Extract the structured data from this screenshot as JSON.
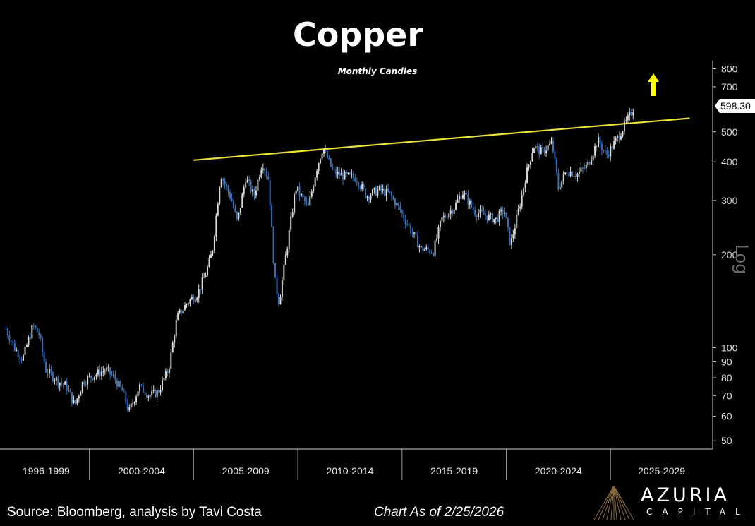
{
  "title": "Copper",
  "subtitle": "Monthly Candles",
  "footer": {
    "source": "Source: Bloomberg, analysis by Tavi Costa",
    "as_of": "Chart As of 2/25/2026"
  },
  "logo": {
    "name": "AZURIA",
    "sub": "CAPITAL"
  },
  "colors": {
    "background": "#000000",
    "trendline": "#e8e23a",
    "arrow": "#ffff00",
    "candle_up": "#d8d8d8",
    "candle_down": "#3a6fb8"
  },
  "chart_data": {
    "type": "candlestick",
    "scale": "log",
    "ylim": [
      47,
      850
    ],
    "yticks": [
      50,
      60,
      70,
      80,
      90,
      100,
      200,
      300,
      400,
      500,
      700,
      800
    ],
    "ytick_labels": [
      "50",
      "60",
      "70",
      "80",
      "90",
      "100",
      "200",
      "300",
      "400",
      "500",
      "700",
      "800"
    ],
    "axis_label": "Log",
    "last_price": "598.30",
    "x_periods": [
      "1996-1999",
      "2000-2004",
      "2005-2009",
      "2010-2014",
      "2015-2019",
      "2020-2024",
      "2025-2029"
    ],
    "xlim": [
      1995.85,
      2029.9
    ],
    "series": [
      {
        "kind": "close_path",
        "points": [
          [
            1996.0,
            115
          ],
          [
            1996.4,
            100
          ],
          [
            1996.8,
            92
          ],
          [
            1997.3,
            118
          ],
          [
            1997.6,
            110
          ],
          [
            1997.9,
            85
          ],
          [
            1998.5,
            78
          ],
          [
            1998.9,
            75
          ],
          [
            1999.3,
            65
          ],
          [
            1999.7,
            78
          ],
          [
            2000.3,
            82
          ],
          [
            2000.8,
            85
          ],
          [
            2001.2,
            80
          ],
          [
            2001.6,
            72
          ],
          [
            2001.9,
            62
          ],
          [
            2002.4,
            75
          ],
          [
            2002.9,
            70
          ],
          [
            2003.3,
            72
          ],
          [
            2003.8,
            85
          ],
          [
            2004.2,
            125
          ],
          [
            2004.7,
            140
          ],
          [
            2005.2,
            150
          ],
          [
            2005.6,
            175
          ],
          [
            2005.9,
            205
          ],
          [
            2006.3,
            365
          ],
          [
            2006.8,
            305
          ],
          [
            2007.1,
            255
          ],
          [
            2007.5,
            355
          ],
          [
            2007.9,
            310
          ],
          [
            2008.3,
            400
          ],
          [
            2008.6,
            350
          ],
          [
            2008.9,
            165
          ],
          [
            2009.1,
            140
          ],
          [
            2009.6,
            240
          ],
          [
            2009.9,
            330
          ],
          [
            2010.5,
            285
          ],
          [
            2010.9,
            380
          ],
          [
            2011.2,
            445
          ],
          [
            2011.7,
            370
          ],
          [
            2012.2,
            360
          ],
          [
            2012.8,
            355
          ],
          [
            2013.3,
            310
          ],
          [
            2013.9,
            325
          ],
          [
            2014.4,
            315
          ],
          [
            2014.9,
            280
          ],
          [
            2015.5,
            235
          ],
          [
            2015.9,
            210
          ],
          [
            2016.5,
            205
          ],
          [
            2016.9,
            260
          ],
          [
            2017.5,
            285
          ],
          [
            2017.9,
            320
          ],
          [
            2018.5,
            275
          ],
          [
            2018.9,
            270
          ],
          [
            2019.5,
            260
          ],
          [
            2019.9,
            280
          ],
          [
            2020.2,
            215
          ],
          [
            2020.7,
            300
          ],
          [
            2020.9,
            350
          ],
          [
            2021.3,
            450
          ],
          [
            2021.7,
            430
          ],
          [
            2022.2,
            460
          ],
          [
            2022.5,
            330
          ],
          [
            2022.9,
            375
          ],
          [
            2023.4,
            365
          ],
          [
            2023.9,
            390
          ],
          [
            2024.4,
            470
          ],
          [
            2024.8,
            420
          ],
          [
            2025.1,
            450
          ],
          [
            2025.5,
            500
          ],
          [
            2025.9,
            560
          ],
          [
            2026.1,
            598.3
          ]
        ]
      },
      {
        "kind": "trendline",
        "points": [
          [
            2005.0,
            405
          ],
          [
            2029.0,
            555
          ]
        ]
      }
    ]
  }
}
